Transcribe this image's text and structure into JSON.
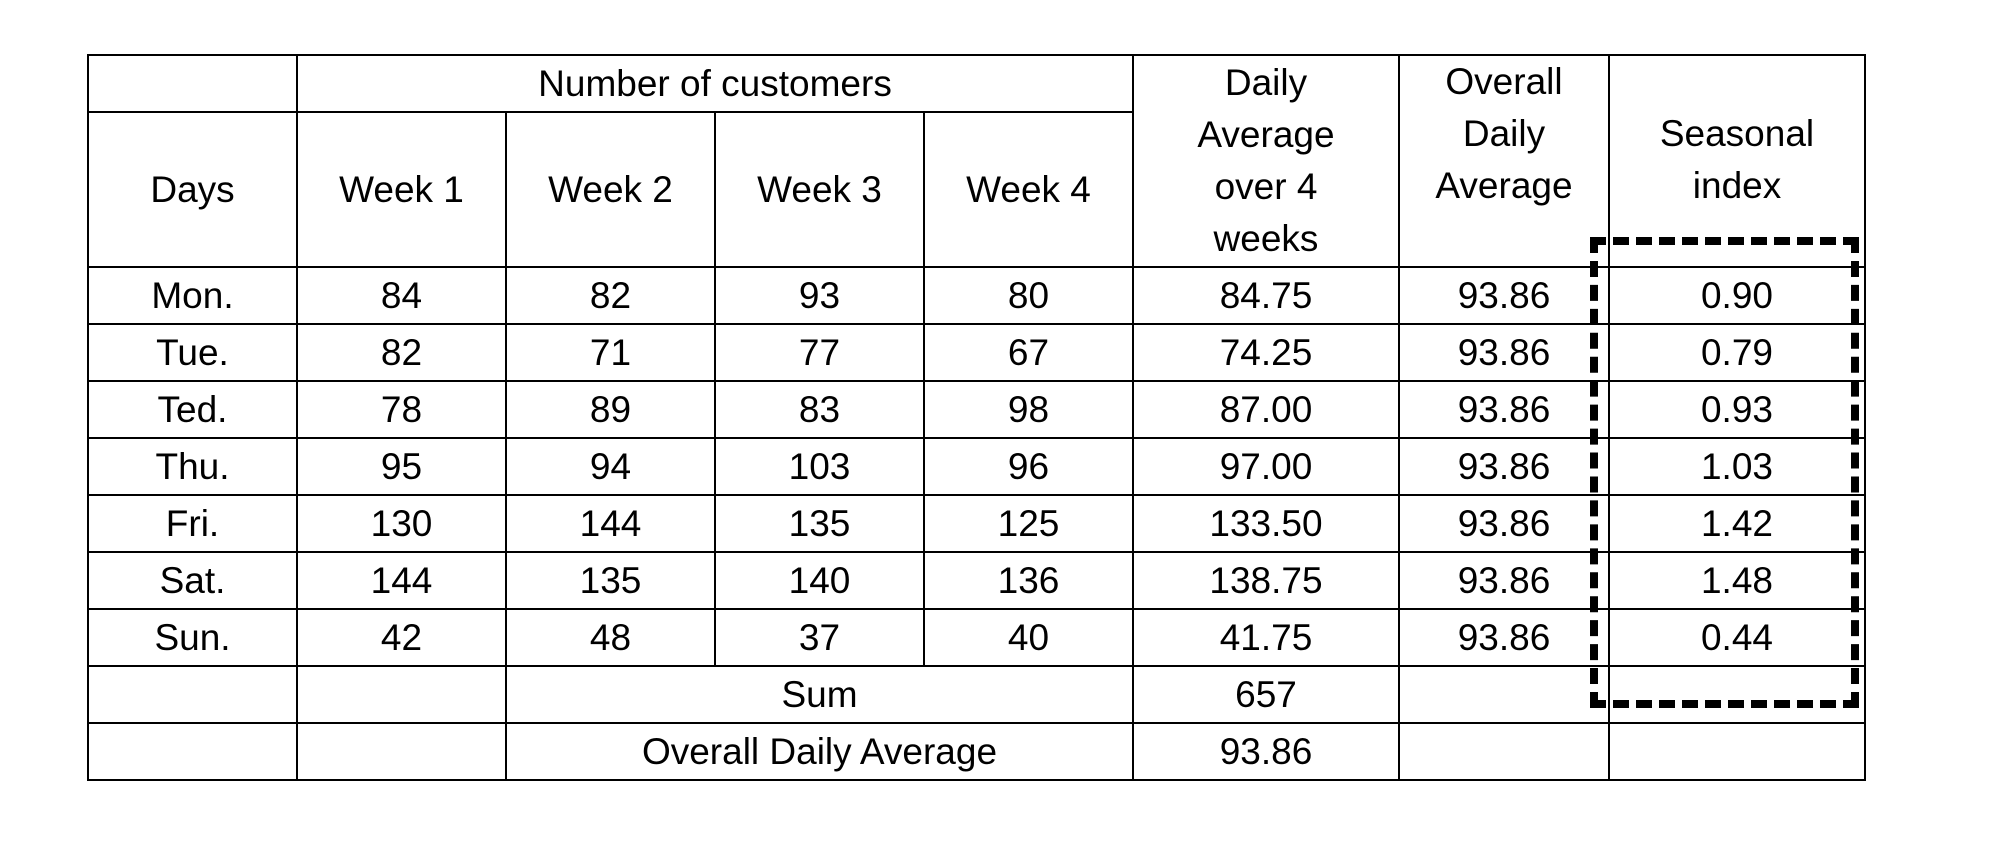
{
  "table": {
    "group_header": "Number of customers",
    "days_header": "Days",
    "week_headers": [
      "Week 1",
      "Week 2",
      "Week 3",
      "Week 4"
    ],
    "daily_avg_header": [
      "Daily",
      "Average",
      "over 4",
      "weeks"
    ],
    "overall_avg_header": [
      "Overall",
      "Daily",
      "Average"
    ],
    "seasonal_header": [
      "Seasonal",
      "index"
    ],
    "rows": [
      {
        "day": "Mon.",
        "w1": "84",
        "w2": "82",
        "w3": "93",
        "w4": "80",
        "daily_avg": "84.75",
        "overall_avg": "93.86",
        "seasonal": "0.90"
      },
      {
        "day": "Tue.",
        "w1": "82",
        "w2": "71",
        "w3": "77",
        "w4": "67",
        "daily_avg": "74.25",
        "overall_avg": "93.86",
        "seasonal": "0.79"
      },
      {
        "day": "Ted.",
        "w1": "78",
        "w2": "89",
        "w3": "83",
        "w4": "98",
        "daily_avg": "87.00",
        "overall_avg": "93.86",
        "seasonal": "0.93"
      },
      {
        "day": "Thu.",
        "w1": "95",
        "w2": "94",
        "w3": "103",
        "w4": "96",
        "daily_avg": "97.00",
        "overall_avg": "93.86",
        "seasonal": "1.03"
      },
      {
        "day": "Fri.",
        "w1": "130",
        "w2": "144",
        "w3": "135",
        "w4": "125",
        "daily_avg": "133.50",
        "overall_avg": "93.86",
        "seasonal": "1.42"
      },
      {
        "day": "Sat.",
        "w1": "144",
        "w2": "135",
        "w3": "140",
        "w4": "136",
        "daily_avg": "138.75",
        "overall_avg": "93.86",
        "seasonal": "1.48"
      },
      {
        "day": "Sun.",
        "w1": "42",
        "w2": "48",
        "w3": "37",
        "w4": "40",
        "daily_avg": "41.75",
        "overall_avg": "93.86",
        "seasonal": "0.44"
      }
    ],
    "sum_label": "Sum",
    "sum_value": "657",
    "overall_label": "Overall Daily Average",
    "overall_value": "93.86"
  }
}
